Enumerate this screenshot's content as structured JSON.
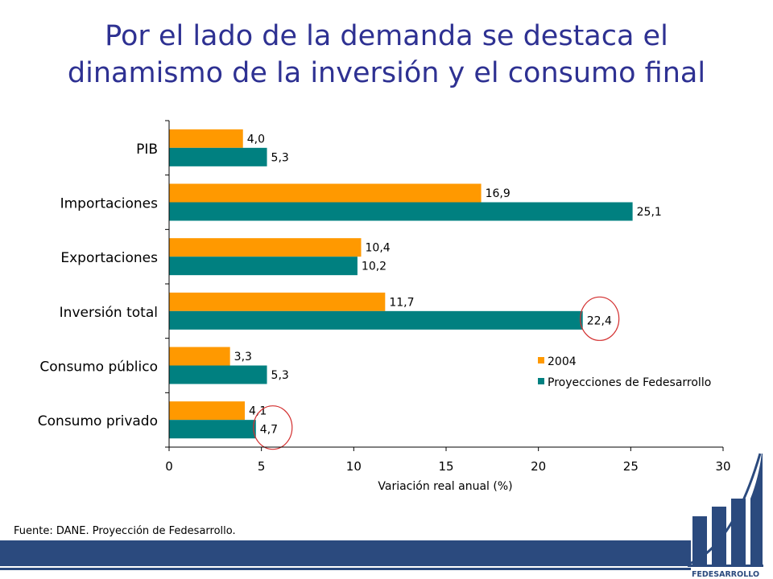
{
  "slide": {
    "title_line1": "Por el lado de la demanda se destaca el",
    "title_line2": "dinamismo de la inversión y el consumo final",
    "source": "Fuente: DANE. Proyección de Fedesarrollo.",
    "logo_text": "FEDESARROLLO",
    "title_color": "#2e3192"
  },
  "chart_data": {
    "type": "bar",
    "orientation": "horizontal",
    "categories": [
      "PIB",
      "Importaciones",
      "Exportaciones",
      "Inversión total",
      "Consumo público",
      "Consumo privado"
    ],
    "series": [
      {
        "name": "2004",
        "color": "#ff9900",
        "values": [
          4.0,
          16.9,
          10.4,
          11.7,
          3.3,
          4.1
        ],
        "labels": [
          "4,0",
          "16,9",
          "10,4",
          "11,7",
          "3,3",
          "4,1"
        ]
      },
      {
        "name": "Proyecciones de Fedesarrollo",
        "color": "#008080",
        "values": [
          5.3,
          25.1,
          10.2,
          22.4,
          5.3,
          4.7
        ],
        "labels": [
          "5,3",
          "25,1",
          "10,2",
          "22,4",
          "5,3",
          "4,7"
        ]
      }
    ],
    "xlabel": "Variación real anual (%)",
    "xlim": [
      0,
      30
    ],
    "xticks": [
      0,
      5,
      10,
      15,
      20,
      25,
      30
    ],
    "legend_position": "right, lower",
    "highlighted": [
      "Inversión total / Proyecciones de Fedesarrollo",
      "Consumo privado / Proyecciones de Fedesarrollo"
    ],
    "highlight_color": "#d32f2f"
  }
}
